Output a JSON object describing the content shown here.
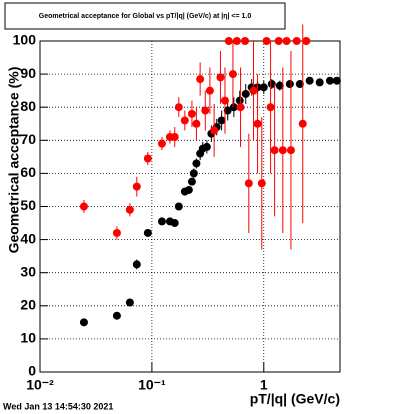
{
  "chart_data": {
    "type": "scatter",
    "title": "Geometrical acceptance for Global vs pT/|q| (GeV/c) at |η| <= 1.0",
    "x_label": "pT/|q| (GeV/c)",
    "y_label": "Geometrical acceptance (%)",
    "footer": "Wed Jan 13 14:54:30 2021",
    "xlog": true,
    "grid": true,
    "xlim": [
      0.01,
      4.8
    ],
    "ylim": [
      0,
      100
    ],
    "xticks": [
      {
        "value": 0.01,
        "label": "10⁻²"
      },
      {
        "value": 0.1,
        "label": "10⁻¹"
      },
      1
    ],
    "yticks": [
      0,
      10,
      20,
      30,
      40,
      50,
      60,
      70,
      80,
      90,
      100
    ],
    "series": [
      {
        "name": "Global (black)",
        "color": "#000000",
        "x": [
          0.0247,
          0.0487,
          0.0636,
          0.0733,
          0.092,
          0.123,
          0.145,
          0.16,
          0.174,
          0.197,
          0.214,
          0.228,
          0.237,
          0.25,
          0.27,
          0.285,
          0.31,
          0.34,
          0.38,
          0.42,
          0.476,
          0.54,
          0.61,
          0.69,
          0.78,
          0.88,
          1.0,
          1.18,
          1.39,
          1.71,
          2.1,
          2.57,
          3.16,
          3.9,
          4.5
        ],
        "values": [
          15,
          17,
          21,
          32.5,
          42,
          45.5,
          45.5,
          45,
          50,
          54.5,
          55,
          57.5,
          60,
          63,
          66,
          67.5,
          68,
          72,
          74,
          76,
          79,
          80,
          82,
          84,
          86,
          86,
          86,
          87,
          86.5,
          87,
          87,
          88,
          87.5,
          88,
          88
        ],
        "errors": [
          1,
          1,
          1,
          1.5,
          1,
          1,
          1,
          1,
          1,
          1,
          1,
          1,
          1.5,
          1.5,
          2,
          2,
          2,
          2.5,
          2.5,
          3,
          3,
          3,
          3,
          3,
          2.5,
          2,
          2,
          1.5,
          1.5,
          1,
          1,
          1,
          1,
          1,
          1
        ]
      },
      {
        "name": "Global (red)",
        "color": "#ff0000",
        "x": [
          0.0247,
          0.0487,
          0.0636,
          0.0733,
          0.092,
          0.123,
          0.145,
          0.16,
          0.174,
          0.197,
          0.228,
          0.25,
          0.27,
          0.3,
          0.33,
          0.36,
          0.41,
          0.45,
          0.487,
          0.53,
          0.575,
          0.62,
          0.68,
          0.735,
          0.81,
          0.88,
          0.96,
          1.06,
          1.15,
          1.25,
          1.36,
          1.48,
          1.6,
          1.75,
          1.97,
          2.23,
          2.4
        ],
        "values": [
          50,
          42,
          49,
          56,
          64.5,
          69,
          71,
          71,
          80,
          76,
          78,
          75,
          88.5,
          79,
          85,
          73,
          89,
          82,
          100,
          90,
          100,
          80,
          100,
          57,
          85,
          75,
          57,
          100,
          80,
          67,
          100,
          67,
          100,
          67,
          100,
          75,
          100
        ],
        "errors": [
          2,
          2,
          2,
          3,
          2,
          2,
          2,
          3,
          3,
          3,
          4,
          5,
          5,
          6,
          7,
          8,
          8,
          10,
          0,
          10,
          0,
          12,
          0,
          15,
          15,
          15,
          20,
          0,
          20,
          20,
          0,
          25,
          0,
          30,
          0,
          30,
          0
        ]
      }
    ]
  }
}
